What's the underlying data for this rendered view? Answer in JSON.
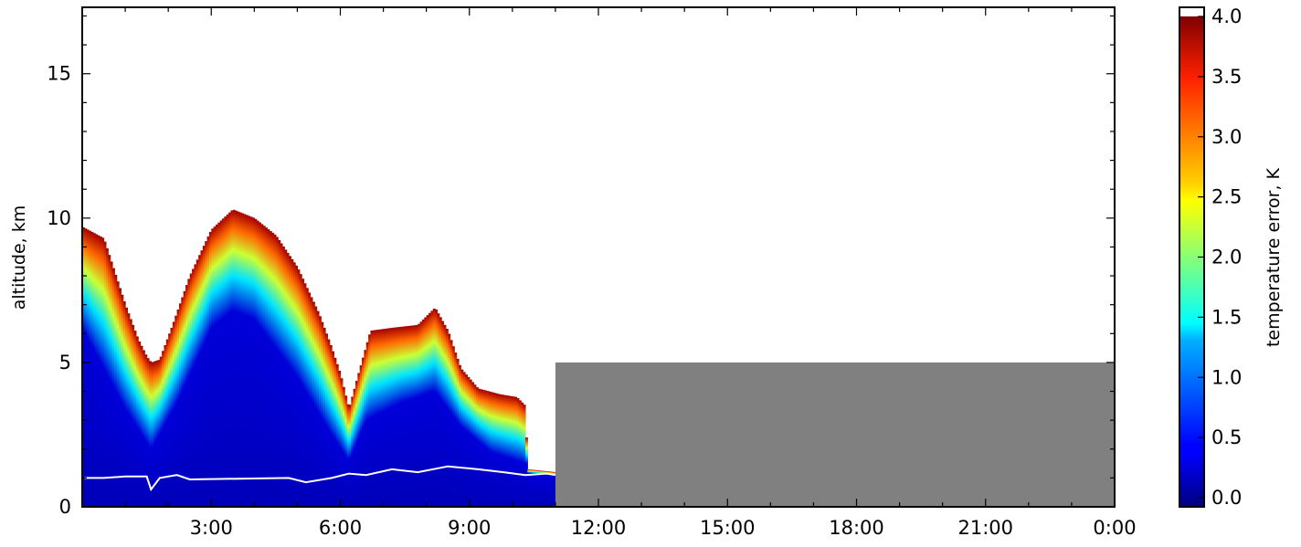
{
  "chart_data": {
    "type": "heatmap",
    "title": "",
    "xlabel": "",
    "ylabel": "altitude, km",
    "xlim": [
      0,
      24
    ],
    "ylim": [
      0,
      17.3
    ],
    "x_ticks": [
      {
        "value": 3,
        "label": "3:00"
      },
      {
        "value": 6,
        "label": "6:00"
      },
      {
        "value": 9,
        "label": "9:00"
      },
      {
        "value": 12,
        "label": "12:00"
      },
      {
        "value": 15,
        "label": "15:00"
      },
      {
        "value": 18,
        "label": "18:00"
      },
      {
        "value": 21,
        "label": "21:00"
      },
      {
        "value": 24,
        "label": "0:00"
      }
    ],
    "y_ticks": [
      {
        "value": 0,
        "label": "0"
      },
      {
        "value": 5,
        "label": "5"
      },
      {
        "value": 10,
        "label": "10"
      },
      {
        "value": 15,
        "label": "15"
      }
    ],
    "colorbar": {
      "label": "temperature error, K",
      "range": [
        0.0,
        4.0
      ],
      "colormap": "jet",
      "ticks": [
        "0.0",
        "0.5",
        "1.0",
        "1.5",
        "2.0",
        "2.5",
        "3.0",
        "3.5",
        "4.0"
      ],
      "tick_values": [
        0.0,
        0.5,
        1.0,
        1.5,
        2.0,
        2.5,
        3.0,
        3.5,
        4.0
      ]
    },
    "data_extent": {
      "t_start": 0,
      "t_end": 11.0
    },
    "top_boundary_km": [
      [
        0.0,
        9.7
      ],
      [
        0.5,
        9.3
      ],
      [
        1.0,
        7.0
      ],
      [
        1.3,
        5.8
      ],
      [
        1.5,
        5.2
      ],
      [
        1.6,
        5.0
      ],
      [
        1.8,
        5.1
      ],
      [
        2.1,
        6.3
      ],
      [
        2.5,
        8.0
      ],
      [
        3.0,
        9.6
      ],
      [
        3.5,
        10.3
      ],
      [
        4.0,
        10.0
      ],
      [
        4.5,
        9.4
      ],
      [
        5.0,
        8.3
      ],
      [
        5.5,
        6.7
      ],
      [
        5.8,
        5.5
      ],
      [
        6.0,
        4.6
      ],
      [
        6.2,
        3.4
      ],
      [
        6.4,
        4.5
      ],
      [
        6.7,
        6.1
      ],
      [
        7.2,
        6.2
      ],
      [
        7.8,
        6.3
      ],
      [
        8.2,
        6.9
      ],
      [
        8.5,
        6.1
      ],
      [
        8.8,
        4.8
      ],
      [
        9.2,
        4.1
      ],
      [
        9.7,
        3.9
      ],
      [
        10.1,
        3.8
      ],
      [
        10.3,
        3.5
      ],
      [
        10.35,
        1.3
      ],
      [
        11.0,
        1.2
      ]
    ],
    "blue_core_km": [
      [
        0.0,
        6.2
      ],
      [
        1.0,
        3.4
      ],
      [
        1.6,
        2.0
      ],
      [
        2.2,
        3.6
      ],
      [
        3.0,
        6.2
      ],
      [
        3.5,
        6.8
      ],
      [
        4.0,
        6.5
      ],
      [
        5.0,
        4.5
      ],
      [
        5.8,
        2.5
      ],
      [
        6.2,
        1.6
      ],
      [
        6.6,
        3.0
      ],
      [
        7.4,
        3.6
      ],
      [
        8.2,
        4.0
      ],
      [
        8.8,
        2.8
      ],
      [
        9.5,
        1.9
      ],
      [
        10.3,
        1.5
      ],
      [
        11.0,
        1.2
      ]
    ],
    "cloud_contour_km": [
      [
        0.05,
        1.0
      ],
      [
        0.5,
        1.0
      ],
      [
        1.0,
        1.05
      ],
      [
        1.5,
        1.05
      ],
      [
        1.6,
        0.6
      ],
      [
        1.8,
        1.0
      ],
      [
        2.2,
        1.1
      ],
      [
        2.5,
        0.95
      ],
      [
        4.8,
        1.0
      ],
      [
        5.2,
        0.85
      ],
      [
        5.8,
        1.0
      ],
      [
        6.2,
        1.15
      ],
      [
        6.6,
        1.1
      ],
      [
        7.2,
        1.3
      ],
      [
        7.8,
        1.2
      ],
      [
        8.5,
        1.4
      ],
      [
        9.2,
        1.3
      ],
      [
        9.8,
        1.2
      ],
      [
        10.3,
        1.1
      ],
      [
        10.8,
        1.15
      ],
      [
        11.0,
        1.1
      ]
    ],
    "no_data_region": {
      "t_start": 11.0,
      "t_end": 24.0,
      "alt_top_km": 5.0,
      "color": "#808080"
    }
  }
}
